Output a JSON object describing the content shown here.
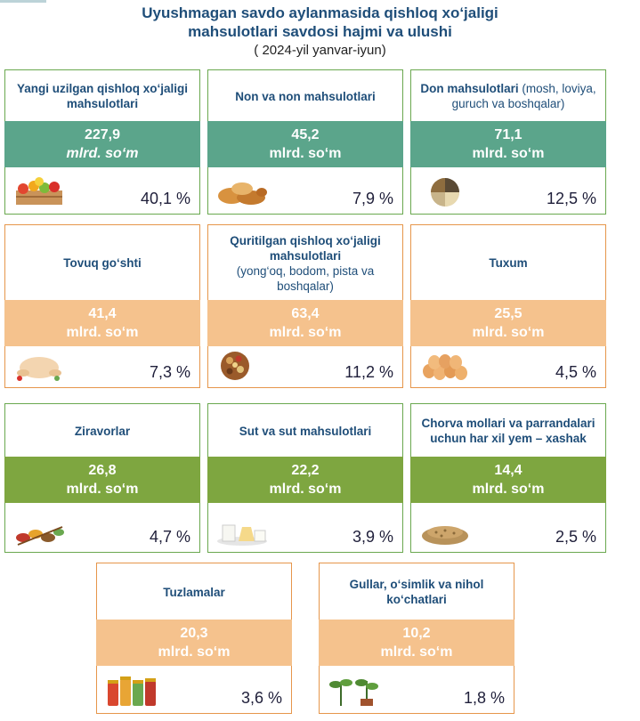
{
  "header": {
    "title_line1": "Uyushmagan savdo aylanmasida qishloq xo‘jaligi",
    "title_line2": "mahsulotlari savdosi hajmi va ulushi",
    "subtitle": "( 2024-yil yanvar-iyun)"
  },
  "cards": [
    {
      "label_bold": "Yangi uzilgan qishloq xo‘jaligi mahsulotlari",
      "label_rest": "",
      "value": "227,9",
      "unit": "mlrd. so‘m",
      "percent": "40,1 %",
      "image_icon": "fruit-crate-icon"
    },
    {
      "label_bold": "Non va non mahsulotlari",
      "label_rest": "",
      "value": "45,2",
      "unit": "mlrd. so‘m",
      "percent": "7,9 %",
      "image_icon": "bread-icon"
    },
    {
      "label_bold": "Don mahsulotlari",
      "label_rest": " (mosh, loviya, guruch va boshqalar)",
      "value": "71,1",
      "unit": "mlrd. so‘m",
      "percent": "12,5 %",
      "image_icon": "grains-bowl-icon"
    },
    {
      "label_bold": "Tovuq go‘shti",
      "label_rest": "",
      "value": "41,4",
      "unit": "mlrd. so‘m",
      "percent": "7,3 %",
      "image_icon": "chicken-icon"
    },
    {
      "label_bold": "Quritilgan qishloq xo‘jaligi mahsulotlari",
      "label_rest": "(yong‘oq, bodom, pista va boshqalar)",
      "value": "63,4",
      "unit": "mlrd. so‘m",
      "percent": "11,2 %",
      "image_icon": "dried-nuts-icon"
    },
    {
      "label_bold": "Tuxum",
      "label_rest": "",
      "value": "25,5",
      "unit": "mlrd. so‘m",
      "percent": "4,5 %",
      "image_icon": "eggs-icon"
    },
    {
      "label_bold": "Ziravorlar",
      "label_rest": "",
      "value": "26,8",
      "unit": "mlrd. so‘m",
      "percent": "4,7 %",
      "image_icon": "spices-icon"
    },
    {
      "label_bold": "Sut va sut mahsulotlari",
      "label_rest": "",
      "value": "22,2",
      "unit": "mlrd. so‘m",
      "percent": "3,9 %",
      "image_icon": "dairy-icon"
    },
    {
      "label_bold": "Chorva mollari va parrandalari uchun har xil yem – xashak",
      "label_rest": "",
      "value": "14,4",
      "unit": "mlrd. so‘m",
      "percent": "2,5 %",
      "image_icon": "feed-grain-icon"
    },
    {
      "label_bold": "Tuzlamalar",
      "label_rest": "",
      "value": "20,3",
      "unit": "mlrd. so‘m",
      "percent": "3,6 %",
      "image_icon": "pickle-jars-icon"
    },
    {
      "label_bold": "Gullar, o‘simlik va nihol ko‘chatlari",
      "label_rest": "",
      "value": "10,2",
      "unit": "mlrd. so‘m",
      "percent": "1,8 %",
      "image_icon": "seedlings-icon"
    }
  ],
  "colors": {
    "title": "#1f4e79",
    "teal_band": "#5ba58b",
    "tan_band": "#f5c28d",
    "olive_band": "#7ea640",
    "green_border": "#6aa84f",
    "orange_border": "#e6964b"
  }
}
